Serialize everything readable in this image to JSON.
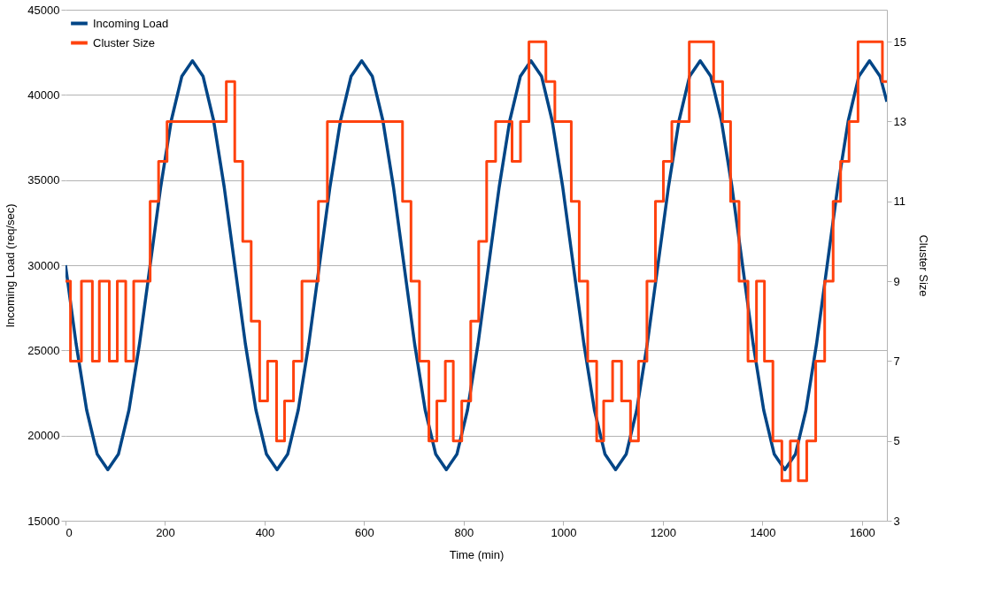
{
  "chart_data": {
    "type": "line",
    "xlabel": "Time (min)",
    "ylabel": "Incoming Load (req/sec)",
    "y2label": "Cluster Size",
    "xlim": [
      0,
      1650
    ],
    "xticks": [
      0,
      200,
      400,
      600,
      800,
      1000,
      1200,
      1400,
      1600
    ],
    "ylim": [
      15000,
      45000
    ],
    "yticks": [
      15000,
      20000,
      25000,
      30000,
      35000,
      40000,
      45000
    ],
    "y2lim": [
      3,
      15.8
    ],
    "y2ticks": [
      3,
      5,
      7,
      9,
      11,
      13,
      15
    ],
    "grid": "y",
    "legend": "top left",
    "marker": "none",
    "line_style": "solid",
    "series": [
      {
        "name": "Incoming Load",
        "color": "#004586",
        "x": [
          0,
          21.25,
          42.5,
          63.75,
          85,
          106.25,
          127.5,
          148.75,
          170,
          191.25,
          212.5,
          233.75,
          255,
          276.25,
          297.5,
          318.75,
          340,
          361.25,
          382.5,
          403.75,
          425,
          446.25,
          467.5,
          488.75,
          510,
          531.25,
          552.5,
          573.75,
          595,
          616.25,
          637.5,
          658.75,
          680,
          701.25,
          722.5,
          743.75,
          765,
          786.25,
          807.5,
          828.75,
          850,
          871.25,
          892.5,
          913.75,
          935,
          956.25,
          977.5,
          998.75,
          1020,
          1041.25,
          1062.5,
          1083.75,
          1105,
          1126.25,
          1147.5,
          1168.75,
          1190,
          1211.25,
          1232.5,
          1253.75,
          1275,
          1296.25,
          1317.5,
          1338.75,
          1360,
          1381.25,
          1402.5,
          1423.75,
          1445,
          1466.25,
          1487.5,
          1508.75,
          1530,
          1551.25,
          1572.5,
          1593.75,
          1615,
          1636.25,
          1650
        ],
        "values": [
          30000,
          25400,
          21500,
          18900,
          18000,
          18900,
          21500,
          25400,
          30000,
          34600,
          38500,
          41100,
          42000,
          41100,
          38500,
          34600,
          30000,
          25400,
          21500,
          18900,
          18000,
          18900,
          21500,
          25400,
          30000,
          34600,
          38500,
          41100,
          42000,
          41100,
          38500,
          34600,
          30000,
          25400,
          21500,
          18900,
          18000,
          18900,
          21500,
          25400,
          30000,
          34600,
          38500,
          41100,
          42000,
          41100,
          38500,
          34600,
          30000,
          25400,
          21500,
          18900,
          18000,
          18900,
          21500,
          25400,
          30000,
          34600,
          38500,
          41100,
          42000,
          41100,
          38500,
          34600,
          30000,
          25400,
          21500,
          18900,
          18000,
          18900,
          21500,
          25400,
          30000,
          34600,
          38500,
          41100,
          42000,
          41100,
          39600
        ]
      },
      {
        "name": "Cluster Size",
        "type": "step",
        "axis": "y2",
        "color": "#ff420e",
        "x": [
          0,
          10,
          32,
          54,
          68,
          88,
          104,
          121,
          137,
          170,
          187,
          204,
          323,
          340,
          356,
          373,
          390,
          406,
          424,
          440,
          458,
          475,
          508,
          526,
          677,
          694,
          711,
          730,
          746,
          763,
          779,
          796,
          814,
          830,
          846,
          864,
          897,
          914,
          931,
          965,
          983,
          1016,
          1032,
          1049,
          1067,
          1081,
          1099,
          1117,
          1135,
          1151,
          1168,
          1185,
          1201,
          1218,
          1253,
          1302,
          1320,
          1336,
          1353,
          1371,
          1388,
          1404,
          1421,
          1439,
          1456,
          1472,
          1489,
          1507,
          1525,
          1542,
          1557,
          1574,
          1592,
          1641,
          1650
        ],
        "values": [
          9,
          7,
          9,
          7,
          9,
          7,
          9,
          7,
          9,
          11,
          12,
          13,
          14,
          12,
          10,
          8,
          6,
          7,
          5,
          6,
          7,
          9,
          11,
          13,
          11,
          9,
          7,
          5,
          6,
          7,
          5,
          6,
          8,
          10,
          12,
          13,
          12,
          13,
          15,
          14,
          13,
          11,
          9,
          7,
          5,
          6,
          7,
          6,
          5,
          7,
          9,
          11,
          12,
          13,
          15,
          14,
          13,
          11,
          9,
          7,
          9,
          7,
          5,
          4,
          5,
          4,
          5,
          7,
          9,
          11,
          12,
          13,
          15,
          14,
          14
        ]
      }
    ]
  }
}
